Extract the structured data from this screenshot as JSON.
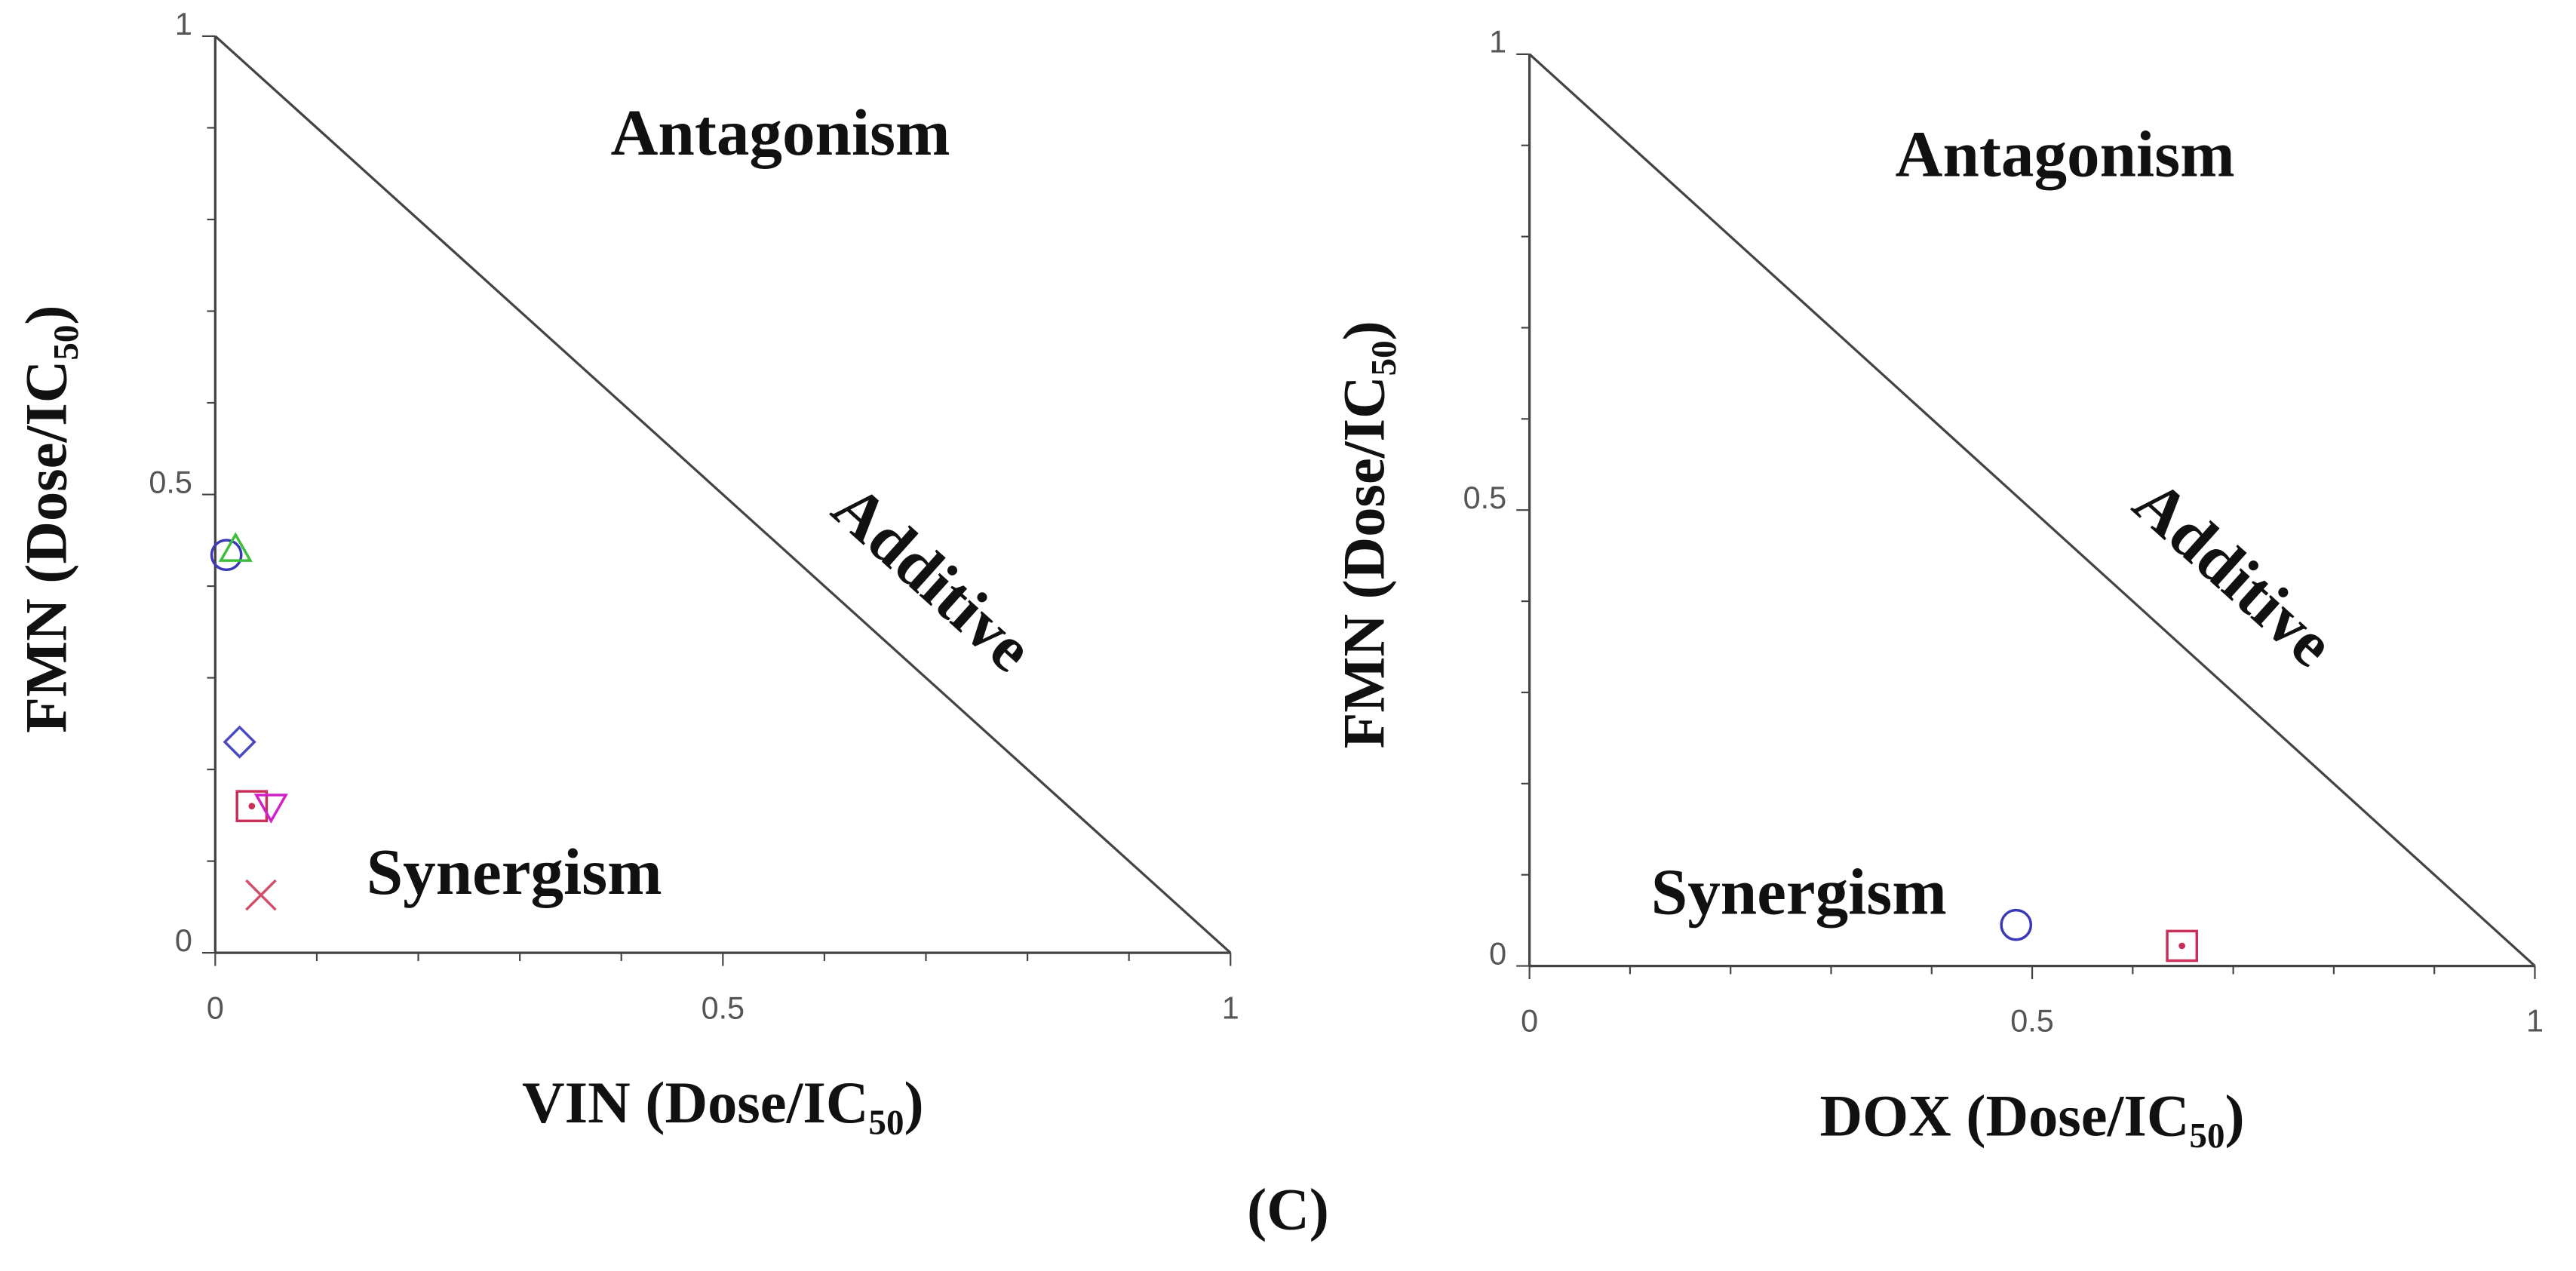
{
  "chart_data": [
    {
      "type": "scatter",
      "xlabel": "VIN (Dose/IC₅₀)",
      "ylabel": "FMN (Dose/IC₅₀)",
      "annotations": [
        "Antagonism",
        "Additive",
        "Synergism"
      ],
      "xlim": [
        0,
        1
      ],
      "ylim": [
        0,
        1
      ],
      "xticks": [
        0,
        0.5,
        1
      ],
      "yticks": [
        0,
        0.5,
        1
      ],
      "xminorticks": [
        0.1,
        0.2,
        0.3,
        0.4,
        0.6,
        0.7,
        0.8,
        0.9
      ],
      "yminorticks": [
        0.1,
        0.2,
        0.3,
        0.4,
        0.6,
        0.7,
        0.8,
        0.9
      ],
      "reference_line": {
        "x": [
          0,
          1
        ],
        "y": [
          1,
          0
        ]
      },
      "series": [
        {
          "marker": "circle",
          "color": "#3a3ab8",
          "x": [
            0.011
          ],
          "values": [
            0.434
          ]
        },
        {
          "marker": "triangle",
          "color": "#3cbf3c",
          "x": [
            0.02
          ],
          "values": [
            0.44
          ]
        },
        {
          "marker": "diamond",
          "color": "#4a4ac0",
          "x": [
            0.024
          ],
          "values": [
            0.23
          ]
        },
        {
          "marker": "square",
          "color": "#c8305a",
          "x": [
            0.036
          ],
          "values": [
            0.16
          ]
        },
        {
          "marker": "triangle-down",
          "color": "#d020c8",
          "x": [
            0.055
          ],
          "values": [
            0.16
          ]
        },
        {
          "marker": "x",
          "color": "#d0506a",
          "x": [
            0.045
          ],
          "values": [
            0.063
          ]
        }
      ]
    },
    {
      "type": "scatter",
      "xlabel": "DOX (Dose/IC₅₀)",
      "ylabel": "FMN (Dose/IC₅₀)",
      "annotations": [
        "Antagonism",
        "Additive",
        "Synergism"
      ],
      "xlim": [
        0,
        1
      ],
      "ylim": [
        0,
        1
      ],
      "xticks": [
        0,
        0.5,
        1
      ],
      "yticks": [
        0,
        0.5,
        1
      ],
      "xminorticks": [
        0.1,
        0.2,
        0.3,
        0.4,
        0.6,
        0.7,
        0.8,
        0.9
      ],
      "yminorticks": [
        0.1,
        0.2,
        0.3,
        0.4,
        0.6,
        0.7,
        0.8,
        0.9
      ],
      "reference_line": {
        "x": [
          0,
          1
        ],
        "y": [
          1,
          0
        ]
      },
      "series": [
        {
          "marker": "circle",
          "color": "#3a3ab8",
          "x": [
            0.484
          ],
          "values": [
            0.045
          ]
        },
        {
          "marker": "square",
          "color": "#c8305a",
          "x": [
            0.649
          ],
          "values": [
            0.022
          ]
        }
      ]
    }
  ],
  "caption": "(C)"
}
